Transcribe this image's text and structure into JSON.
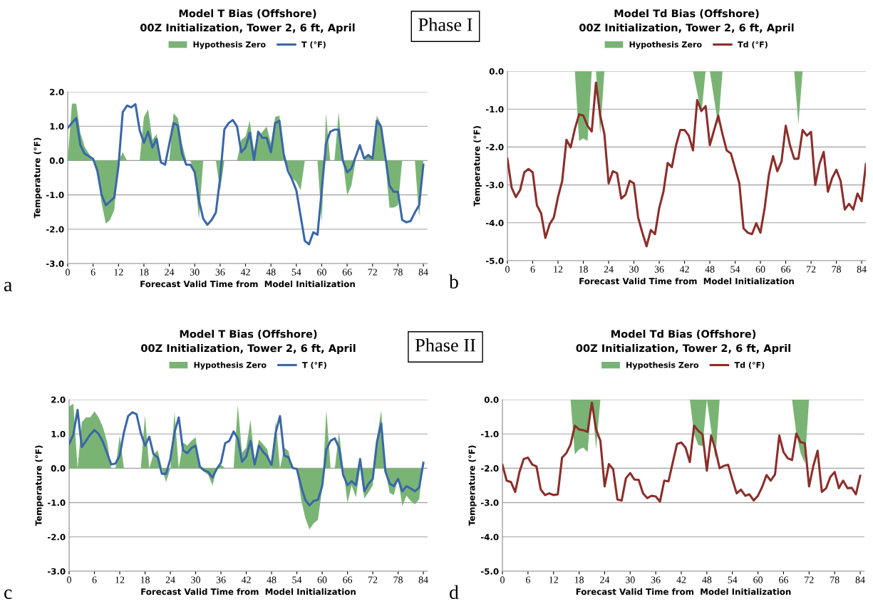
{
  "chart_data": [
    {
      "type": "line",
      "title": "Model T Bias (Offshore)",
      "subtitle": "00Z Initialization, Tower 2, 6 ft, April",
      "ylabel": "Temperature (°F)",
      "xlabel": "Forecast Valid Time from  Model Initialization",
      "annotations": [
        "a",
        "Phase I"
      ],
      "legend": "top",
      "grid": "y",
      "xlim": [
        0,
        85
      ],
      "xticks": [
        0,
        6,
        12,
        18,
        24,
        30,
        36,
        42,
        48,
        54,
        60,
        66,
        72,
        78,
        84
      ],
      "ylim": [
        -3,
        2
      ],
      "yticks": [
        {
          "value": 2,
          "label": "2.0"
        },
        {
          "value": 1,
          "label": "1.0"
        },
        {
          "value": 0,
          "label": "0.0"
        },
        {
          "value": -1,
          "label": "-1.0"
        },
        {
          "value": -2,
          "label": "-2.0"
        },
        {
          "value": -3,
          "label": "-3.0"
        }
      ],
      "series": [
        {
          "type": "area",
          "name": "Hypothesis Zero",
          "color": "#7ab474",
          "x": [
            0,
            1,
            2,
            3,
            4,
            5,
            6,
            7,
            8,
            9,
            10,
            11,
            12,
            13,
            14,
            17,
            18,
            19,
            20,
            21,
            22,
            24,
            25,
            26,
            27,
            28,
            29,
            30,
            31,
            32,
            35,
            36,
            37,
            40,
            41,
            42,
            43,
            44,
            45,
            46,
            47,
            48,
            49,
            50,
            51,
            52,
            53,
            54,
            55,
            56,
            59,
            60,
            61,
            62,
            63,
            64,
            65,
            66,
            67,
            68,
            70,
            71,
            72,
            73,
            74,
            75,
            76,
            77,
            78,
            79,
            82,
            83,
            84
          ],
          "values": [
            0,
            1.66,
            1.66,
            0.8,
            0.4,
            0.2,
            0.05,
            -0.3,
            -1.23,
            -1.84,
            -1.73,
            -1.44,
            0,
            0.24,
            0,
            0,
            1.27,
            1.49,
            0.6,
            0.77,
            0,
            0,
            1.38,
            1.24,
            0.5,
            0,
            0,
            -0.4,
            -1.7,
            0,
            0,
            -0.87,
            0,
            0,
            0.6,
            0.7,
            1.16,
            0.3,
            0.7,
            0.84,
            0.99,
            0.5,
            1.27,
            1.31,
            0.2,
            -0.2,
            -0.5,
            -0.62,
            -0.87,
            0,
            0,
            -1.8,
            1.37,
            0,
            0,
            1.41,
            0,
            -1.01,
            -0.73,
            0,
            0,
            0.2,
            0.1,
            1.31,
            1.06,
            0,
            -1.37,
            -1.37,
            -1.3,
            0,
            0,
            -1.65,
            0
          ]
        },
        {
          "type": "line",
          "name": "T (°F)",
          "color": "#3a67a8",
          "x": [
            0,
            2,
            3,
            4,
            6,
            7,
            8,
            9,
            11,
            12,
            13,
            14,
            15,
            16,
            17,
            18,
            19,
            20,
            21,
            22,
            23,
            25,
            26,
            27,
            28,
            29,
            30,
            31,
            32,
            33,
            34,
            35,
            36,
            37,
            38,
            39,
            40,
            41,
            42,
            43,
            44,
            45,
            46,
            47,
            48,
            49,
            50,
            51,
            52,
            53,
            54,
            56,
            57,
            58,
            59,
            60,
            61,
            62,
            63,
            64,
            65,
            66,
            67,
            69,
            70,
            71,
            72,
            73,
            74,
            76,
            77,
            78,
            79,
            80,
            81,
            82,
            83,
            84
          ],
          "values": [
            0.95,
            1.24,
            0.45,
            0.2,
            0.05,
            -0.3,
            -1.0,
            -1.3,
            -1.08,
            -0.15,
            1.41,
            1.6,
            1.55,
            1.64,
            0.88,
            0.52,
            0.84,
            0.38,
            0.63,
            -0.05,
            -0.12,
            1.09,
            1.02,
            0.2,
            -0.12,
            -0.12,
            -0.34,
            -1.16,
            -1.69,
            -1.87,
            -1.73,
            -1.51,
            -0.51,
            0.91,
            1.09,
            1.18,
            0.99,
            0.24,
            0.38,
            0.81,
            0.02,
            0.84,
            0.66,
            0.66,
            0.24,
            1.09,
            1.16,
            0.2,
            -0.3,
            -0.55,
            -0.87,
            -2.34,
            -2.44,
            -2.09,
            -2.16,
            -0.87,
            0.49,
            0.84,
            0.9,
            0.9,
            -0.01,
            -0.34,
            -0.23,
            0.45,
            0.06,
            0.16,
            0.06,
            1.16,
            0.99,
            -0.73,
            -0.91,
            -0.91,
            -1.73,
            -1.8,
            -1.76,
            -1.51,
            -1.3,
            -0.12
          ]
        }
      ]
    },
    {
      "type": "line",
      "title": "Model Td Bias (Offshore)",
      "subtitle": "00Z Initialization, Tower 2, 6 ft, April",
      "ylabel": "Temperature (°F)",
      "xlabel": "Forecast Valid Time from  Model Initialization",
      "annotations": [
        "b"
      ],
      "legend": "top",
      "grid": "y",
      "xlim": [
        0,
        85
      ],
      "xticks": [
        0,
        6,
        12,
        18,
        24,
        30,
        36,
        42,
        48,
        54,
        60,
        66,
        72,
        78,
        84
      ],
      "ylim": [
        -5,
        0
      ],
      "yticks": [
        {
          "value": 0,
          "label": "0.0"
        },
        {
          "value": -1,
          "label": "-1.0"
        },
        {
          "value": -2,
          "label": "-2.0"
        },
        {
          "value": -3,
          "label": "-3.0"
        },
        {
          "value": -4,
          "label": "-4.0"
        },
        {
          "value": -5,
          "label": "-5.0"
        }
      ],
      "series": [
        {
          "type": "area",
          "name": "Hypothesis Zero",
          "color": "#7ab474",
          "x": [
            16,
            17,
            18,
            19,
            20,
            21,
            22,
            23,
            44,
            46,
            47,
            48,
            50,
            51,
            68,
            69,
            70
          ],
          "values": [
            0,
            -1.84,
            -1.77,
            -1.84,
            0,
            0,
            -1.66,
            0,
            0,
            -1.12,
            0,
            0,
            -1.44,
            0,
            0,
            -1.4,
            0
          ]
        },
        {
          "type": "line",
          "name": "Td (°F)",
          "color": "#8b2e2a",
          "x": [
            0,
            1,
            2,
            3,
            4,
            5,
            6,
            7,
            8,
            9,
            10,
            11,
            12,
            13,
            14,
            15,
            16,
            17,
            18,
            19,
            20,
            21,
            22,
            23,
            24,
            25,
            26,
            27,
            28,
            29,
            30,
            31,
            32,
            33,
            34,
            35,
            36,
            37,
            38,
            39,
            40,
            41,
            42,
            43,
            44,
            45,
            46,
            47,
            48,
            50,
            51,
            52,
            53,
            55,
            56,
            57,
            58,
            59,
            60,
            61,
            62,
            63,
            64,
            65,
            66,
            67,
            68,
            69,
            70,
            71,
            72,
            73,
            74,
            75,
            76,
            77,
            78,
            79,
            80,
            81,
            82,
            83,
            84,
            85
          ],
          "values": [
            -2.31,
            -3.07,
            -3.32,
            -3.14,
            -2.67,
            -2.58,
            -2.67,
            -3.54,
            -3.75,
            -4.4,
            -4.04,
            -3.86,
            -3.32,
            -2.89,
            -1.81,
            -2.01,
            -1.52,
            -1.14,
            -1.17,
            -1.44,
            -1.59,
            -0.3,
            -1.16,
            -1.66,
            -2.96,
            -2.64,
            -2.69,
            -3.36,
            -3.26,
            -2.89,
            -2.96,
            -3.86,
            -4.26,
            -4.62,
            -4.19,
            -4.3,
            -3.61,
            -3.18,
            -2.42,
            -2.53,
            -1.95,
            -1.55,
            -1.55,
            -1.7,
            -2.09,
            -0.76,
            -1.05,
            -0.92,
            -1.95,
            -1.17,
            -1.66,
            -2.09,
            -2.17,
            -2.96,
            -4.15,
            -4.26,
            -4.3,
            -4.01,
            -4.26,
            -3.61,
            -2.74,
            -2.24,
            -2.64,
            -2.38,
            -1.44,
            -1.95,
            -2.31,
            -2.31,
            -1.55,
            -1.7,
            -1.6,
            -3.0,
            -2.45,
            -2.13,
            -3.18,
            -2.82,
            -2.6,
            -2.89,
            -3.65,
            -3.5,
            -3.65,
            -3.23,
            -3.43,
            -2.45
          ]
        }
      ]
    },
    {
      "type": "line",
      "title": "Model T Bias (Offshore)",
      "subtitle": "00Z Initialization, Tower 2, 6 ft, April",
      "ylabel": "Temperature (°F)",
      "xlabel": "Forecast Valid Time from  Model Initialization",
      "annotations": [
        "c",
        "Phase II"
      ],
      "legend": "top",
      "grid": "y",
      "xlim": [
        0,
        85
      ],
      "xticks": [
        0,
        6,
        12,
        18,
        24,
        30,
        36,
        42,
        48,
        54,
        60,
        66,
        72,
        78,
        84
      ],
      "ylim": [
        -3,
        2
      ],
      "yticks": [
        {
          "value": 2,
          "label": "2.0"
        },
        {
          "value": 1,
          "label": "1.0"
        },
        {
          "value": 0,
          "label": "0.0"
        },
        {
          "value": -1,
          "label": "-1.0"
        },
        {
          "value": -2,
          "label": "-2.0"
        },
        {
          "value": -3,
          "label": "-3.0"
        }
      ],
      "series": [
        {
          "type": "area",
          "name": "Hypothesis Zero",
          "color": "#7ab474",
          "x": [
            0,
            1,
            2,
            3,
            4,
            5,
            6,
            7,
            8,
            9,
            10,
            11,
            12,
            13,
            17,
            18,
            19,
            20,
            21,
            22,
            23,
            24,
            25,
            26,
            27,
            28,
            29,
            30,
            31,
            32,
            33,
            34,
            35,
            36,
            37,
            39,
            40,
            41,
            42,
            43,
            44,
            45,
            46,
            47,
            48,
            49,
            50,
            51,
            52,
            53,
            54,
            55,
            56,
            57,
            58,
            59,
            60,
            61,
            62,
            63,
            64,
            65,
            66,
            67,
            68,
            69,
            70,
            71,
            72,
            73,
            74,
            75,
            76,
            77,
            78,
            79,
            80,
            81,
            82,
            83,
            84
          ],
          "values": [
            1.8,
            1.88,
            0,
            1.34,
            1.48,
            1.48,
            1.66,
            1.48,
            1.2,
            0.77,
            0,
            0,
            0.95,
            0,
            0,
            1.55,
            0,
            0.41,
            0.52,
            0,
            -0.4,
            0,
            1.63,
            0,
            0.75,
            0.66,
            0.8,
            0.9,
            0,
            -0.1,
            -0.2,
            -0.5,
            0,
            0.1,
            0,
            0,
            1.84,
            0.45,
            0.6,
            1.41,
            0.2,
            0.84,
            0.7,
            0.55,
            0,
            1.38,
            0,
            0.6,
            0.5,
            0,
            0,
            -0.9,
            -1.45,
            -1.78,
            -1.6,
            -1.5,
            -0.6,
            1.7,
            0,
            0,
            1.05,
            0,
            -1.01,
            -0.5,
            -0.85,
            0,
            -0.88,
            -0.7,
            -0.5,
            0.9,
            1.68,
            0,
            -0.72,
            -0.78,
            -0.3,
            -1.1,
            -0.8,
            -0.95,
            -1.05,
            -0.9,
            0.2
          ]
        },
        {
          "type": "line",
          "name": "T (°F)",
          "color": "#3a67a8",
          "x": [
            0,
            1,
            2,
            3,
            4,
            5,
            6,
            7,
            8,
            9,
            10,
            11,
            12,
            13,
            14,
            15,
            16,
            17,
            18,
            19,
            20,
            21,
            22,
            23,
            24,
            25,
            26,
            27,
            28,
            29,
            30,
            31,
            32,
            33,
            34,
            35,
            36,
            37,
            38,
            39,
            40,
            41,
            42,
            43,
            44,
            45,
            46,
            47,
            48,
            49,
            50,
            51,
            52,
            53,
            54,
            55,
            56,
            57,
            58,
            59,
            60,
            61,
            62,
            63,
            64,
            65,
            66,
            67,
            68,
            69,
            70,
            71,
            72,
            73,
            74,
            75,
            76,
            77,
            78,
            79,
            80,
            81,
            82,
            83,
            84
          ],
          "values": [
            0.71,
            0.98,
            1.7,
            0.62,
            0.8,
            0.98,
            1.11,
            1.0,
            0.77,
            0.44,
            0.11,
            0.14,
            0.37,
            1.05,
            1.52,
            1.63,
            1.57,
            1.02,
            0.66,
            0.92,
            0.41,
            0.32,
            -0.16,
            -0.16,
            0.27,
            1.05,
            1.48,
            0.52,
            0.44,
            0.59,
            0.66,
            0.05,
            -0.06,
            -0.11,
            -0.27,
            -0.02,
            0.16,
            0.73,
            0.8,
            1.07,
            0.87,
            0.19,
            0.34,
            0.8,
            0.11,
            0.66,
            0.48,
            0.34,
            0.09,
            1.05,
            1.52,
            0.37,
            0.32,
            0.01,
            -0.02,
            -0.52,
            -0.92,
            -1.08,
            -0.95,
            -0.92,
            -0.52,
            0.55,
            0.8,
            0.87,
            0.59,
            -0.2,
            -0.49,
            -0.38,
            -0.49,
            0.27,
            -0.67,
            -0.45,
            -0.31,
            0.77,
            1.3,
            -0.09,
            -0.45,
            -0.52,
            -0.31,
            -0.67,
            -0.52,
            -0.59,
            -0.67,
            -0.56,
            0.16
          ]
        }
      ]
    },
    {
      "type": "line",
      "title": "Model Td Bias (Offshore)",
      "subtitle": "00Z Initialization, Tower 2, 6 ft, April",
      "ylabel": "Temperature (°F)",
      "xlabel": "Forecast Valid Time from  Model Initialization",
      "annotations": [
        "d"
      ],
      "legend": "top",
      "grid": "y",
      "xlim": [
        0,
        85
      ],
      "xticks": [
        0,
        6,
        12,
        18,
        24,
        30,
        36,
        42,
        48,
        54,
        60,
        66,
        72,
        78,
        84
      ],
      "ylim": [
        -5,
        0
      ],
      "yticks": [
        {
          "value": 0,
          "label": "0.0"
        },
        {
          "value": -1,
          "label": "-1.0"
        },
        {
          "value": -2,
          "label": "-2.0"
        },
        {
          "value": -3,
          "label": "-3.0"
        },
        {
          "value": -4,
          "label": "-4.0"
        },
        {
          "value": -5,
          "label": "-5.0"
        }
      ],
      "series": [
        {
          "type": "area",
          "name": "Hypothesis Zero",
          "color": "#7ab474",
          "x": [
            16,
            17,
            18,
            19,
            20,
            21,
            22,
            23,
            44,
            45,
            46,
            47,
            48,
            50,
            51,
            68,
            69,
            70,
            71,
            72
          ],
          "values": [
            0,
            -1.6,
            -1.45,
            -1.4,
            -1.53,
            0,
            -1.44,
            0,
            0,
            -1.0,
            -1.33,
            -1.35,
            0,
            -1.74,
            0,
            0,
            -1.0,
            -1.55,
            -1.85,
            0
          ]
        },
        {
          "type": "line",
          "name": "Td (°F)",
          "color": "#8b2e2a",
          "x": [
            0,
            1,
            2,
            3,
            4,
            5,
            6,
            7,
            8,
            9,
            10,
            11,
            12,
            13,
            14,
            15,
            16,
            17,
            18,
            19,
            20,
            21,
            22,
            23,
            24,
            25,
            26,
            27,
            28,
            29,
            30,
            31,
            32,
            33,
            34,
            35,
            36,
            37,
            38,
            39,
            40,
            41,
            42,
            43,
            44,
            45,
            46,
            47,
            48,
            49,
            50,
            51,
            52,
            53,
            54,
            55,
            56,
            57,
            58,
            59,
            60,
            61,
            62,
            63,
            64,
            65,
            66,
            67,
            68,
            69,
            70,
            71,
            72,
            73,
            74,
            75,
            76,
            77,
            78,
            79,
            80,
            81,
            82,
            83,
            84
          ],
          "values": [
            -1.9,
            -2.36,
            -2.4,
            -2.69,
            -2.11,
            -1.73,
            -1.69,
            -1.89,
            -1.95,
            -2.62,
            -2.78,
            -2.73,
            -2.78,
            -2.76,
            -1.69,
            -1.56,
            -1.31,
            -0.76,
            -0.87,
            -0.89,
            -0.94,
            -0.09,
            -0.87,
            -1.2,
            -2.53,
            -1.88,
            -2.03,
            -2.91,
            -2.94,
            -2.29,
            -2.14,
            -2.33,
            -2.34,
            -2.73,
            -2.87,
            -2.8,
            -2.82,
            -2.97,
            -2.36,
            -2.38,
            -1.83,
            -1.29,
            -1.25,
            -1.4,
            -1.82,
            -0.76,
            -0.91,
            -1.02,
            -2.07,
            -1.05,
            -1.45,
            -2.0,
            -1.93,
            -1.9,
            -2.33,
            -2.73,
            -2.62,
            -2.8,
            -2.76,
            -2.94,
            -2.8,
            -2.54,
            -2.2,
            -2.36,
            -2.18,
            -1.05,
            -1.53,
            -1.71,
            -1.76,
            -0.99,
            -1.24,
            -1.27,
            -2.53,
            -1.93,
            -1.49,
            -2.69,
            -2.58,
            -2.25,
            -2.11,
            -2.58,
            -2.36,
            -2.58,
            -2.57,
            -2.76,
            -2.22
          ]
        }
      ]
    }
  ]
}
